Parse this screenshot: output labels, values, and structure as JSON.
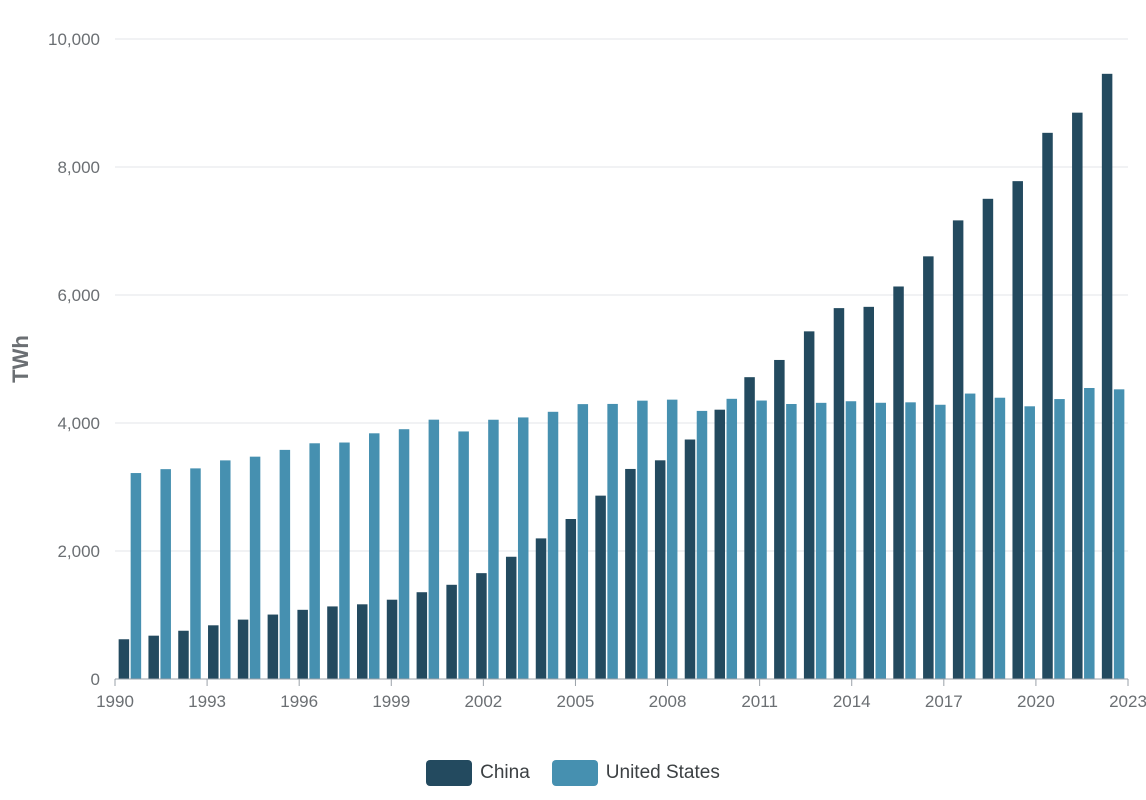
{
  "chart_data": {
    "type": "bar",
    "ylabel": "TWh",
    "ylim": [
      0,
      10000
    ],
    "yticks": [
      0,
      2000,
      4000,
      6000,
      8000,
      10000
    ],
    "ytick_labels": [
      "0",
      "2,000",
      "4,000",
      "6,000",
      "8,000",
      "10,000"
    ],
    "xtick_labels": [
      "1990",
      "1993",
      "1996",
      "1999",
      "2002",
      "2005",
      "2008",
      "2011",
      "2014",
      "2017",
      "2020",
      "2023"
    ],
    "categories": [
      "1990",
      "1991",
      "1992",
      "1993",
      "1994",
      "1995",
      "1996",
      "1997",
      "1998",
      "1999",
      "2000",
      "2001",
      "2002",
      "2003",
      "2004",
      "2005",
      "2006",
      "2007",
      "2008",
      "2009",
      "2010",
      "2011",
      "2012",
      "2013",
      "2014",
      "2015",
      "2016",
      "2017",
      "2018",
      "2019",
      "2020",
      "2021",
      "2022",
      "2023"
    ],
    "grid": true,
    "legend_position": "bottom",
    "series": [
      {
        "name": "China",
        "color": "#234a5f",
        "values": [
          621,
          677,
          754,
          839,
          928,
          1007,
          1081,
          1134,
          1167,
          1239,
          1356,
          1472,
          1654,
          1910,
          2197,
          2500,
          2865,
          3282,
          3417,
          3742,
          4208,
          4716,
          4985,
          5432,
          5795,
          5815,
          6133,
          6604,
          7166,
          7503,
          7779,
          8534,
          8849,
          9456
        ]
      },
      {
        "name": "United States",
        "color": "#4690b0",
        "values": [
          3218,
          3279,
          3291,
          3416,
          3474,
          3580,
          3683,
          3695,
          3839,
          3903,
          4052,
          3868,
          4051,
          4087,
          4175,
          4295,
          4298,
          4349,
          4365,
          4189,
          4378,
          4351,
          4297,
          4315,
          4340,
          4316,
          4323,
          4285,
          4460,
          4395,
          4261,
          4374,
          4547,
          4526
        ]
      }
    ]
  }
}
